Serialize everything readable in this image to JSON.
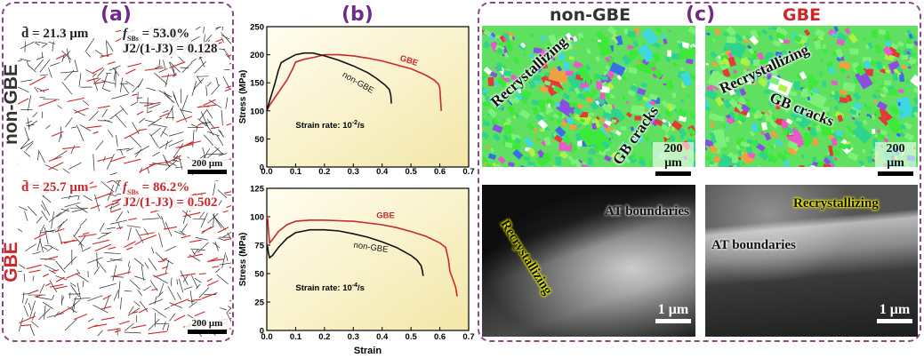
{
  "panel_a": {
    "label": "(a)",
    "row_labels": {
      "top": "non-GBE",
      "bottom": "GBE"
    },
    "top": {
      "d_mean": "d̄ = 21.3 μm",
      "f_sbs": "f",
      "f_sub": "SBs",
      "f_value": " = 53.0%",
      "j_ratio": "J2/(1-J3) = 0.128",
      "scale": "200 μm"
    },
    "bottom": {
      "d_mean": "d̄ = 25.7 μm",
      "f_sbs": "f",
      "f_sub": "SBs",
      "f_value": " = 86.2%",
      "j_ratio": "J2/(1-J3) = 0.502",
      "scale": "200 μm"
    },
    "colors": {
      "grain_boundary": "#2a2a2a",
      "special_boundary": "#d0262a"
    }
  },
  "panel_b": {
    "label": "(b)"
  },
  "chart_data": [
    {
      "type": "line",
      "xlabel": "",
      "ylabel": "Stress (MPa)",
      "xlim": [
        0,
        0.7
      ],
      "ylim": [
        0,
        250
      ],
      "xticks": [
        "0.0",
        "0.1",
        "0.2",
        "0.3",
        "0.4",
        "0.5",
        "0.6",
        "0.7"
      ],
      "yticks": [
        "0",
        "50",
        "100",
        "150",
        "200",
        "250"
      ],
      "annotation": "Strain rate: 10",
      "annotation_exp": "-2",
      "annotation_unit": "/s",
      "series": [
        {
          "name": "GBE",
          "color": "#c8282e",
          "x": [
            0,
            0.01,
            0.03,
            0.05,
            0.07,
            0.09,
            0.1,
            0.13,
            0.17,
            0.2,
            0.25,
            0.3,
            0.35,
            0.4,
            0.45,
            0.5,
            0.55,
            0.58,
            0.595,
            0.6,
            0.605
          ],
          "y": [
            100,
            110,
            125,
            140,
            155,
            175,
            187,
            192,
            196,
            200,
            200,
            198,
            194,
            189,
            182,
            175,
            164,
            155,
            148,
            140,
            100
          ]
        },
        {
          "name": "non-GBE",
          "color": "#111111",
          "x": [
            0,
            0.01,
            0.02,
            0.03,
            0.04,
            0.05,
            0.07,
            0.1,
            0.13,
            0.16,
            0.2,
            0.25,
            0.3,
            0.35,
            0.38,
            0.41,
            0.425,
            0.43,
            0.432
          ],
          "y": [
            100,
            118,
            135,
            152,
            172,
            186,
            192,
            200,
            203,
            203,
            198,
            190,
            180,
            168,
            158,
            146,
            138,
            128,
            113
          ]
        }
      ]
    },
    {
      "type": "line",
      "xlabel": "Strain",
      "ylabel": "Stress (MPa)",
      "xlim": [
        0,
        0.7
      ],
      "ylim": [
        0,
        125
      ],
      "xticks": [
        "0.0",
        "0.1",
        "0.2",
        "0.3",
        "0.4",
        "0.5",
        "0.6",
        "0.7"
      ],
      "yticks": [
        "0",
        "25",
        "50",
        "75",
        "100",
        "125"
      ],
      "annotation": "Strain rate: 10",
      "annotation_exp": "-4",
      "annotation_unit": "/s",
      "series": [
        {
          "name": "GBE",
          "color": "#c8282e",
          "x": [
            0,
            0.003,
            0.006,
            0.01,
            0.02,
            0.04,
            0.07,
            0.1,
            0.15,
            0.2,
            0.25,
            0.3,
            0.35,
            0.4,
            0.45,
            0.5,
            0.55,
            0.6,
            0.62,
            0.63,
            0.635,
            0.645,
            0.655,
            0.66
          ],
          "y": [
            100,
            98,
            88,
            77,
            80,
            87,
            93,
            96,
            97,
            97,
            96.5,
            96,
            94.5,
            93,
            90.5,
            87,
            83,
            77,
            73,
            62,
            52,
            45,
            38,
            30
          ]
        },
        {
          "name": "non-GBE",
          "color": "#111111",
          "x": [
            0,
            0.003,
            0.006,
            0.01,
            0.02,
            0.04,
            0.07,
            0.1,
            0.15,
            0.2,
            0.25,
            0.3,
            0.35,
            0.4,
            0.45,
            0.5,
            0.52,
            0.535,
            0.54,
            0.542
          ],
          "y": [
            75,
            73,
            68,
            64,
            66,
            73,
            81,
            86,
            88.5,
            88.5,
            87.5,
            85,
            82,
            78,
            73,
            66,
            62,
            57,
            52,
            48
          ]
        }
      ]
    }
  ],
  "panel_c": {
    "label": "(c)",
    "titles": {
      "left": "non-GBE",
      "right": "GBE"
    },
    "ebsd_left": {
      "recryst": "Recrystallizing",
      "cracks": "GB cracks",
      "scale": "200 μm"
    },
    "ebsd_right": {
      "recryst": "Recrystallizing",
      "cracks": "GB cracks",
      "scale": "200 μm"
    },
    "tem_left": {
      "at": "AT boundaries",
      "recryst": "Recrystallizing",
      "scale": "1 μm"
    },
    "tem_right": {
      "at": "AT boundaries",
      "recryst": "Recrystallizing",
      "scale": "1 μm"
    }
  },
  "colors": {
    "frame": "#8b4a86",
    "panel_label": "#6e2c86",
    "gbe": "#c8282e",
    "plot_bg_start": "#fffdf0",
    "plot_bg_end": "#f3e7a8"
  }
}
